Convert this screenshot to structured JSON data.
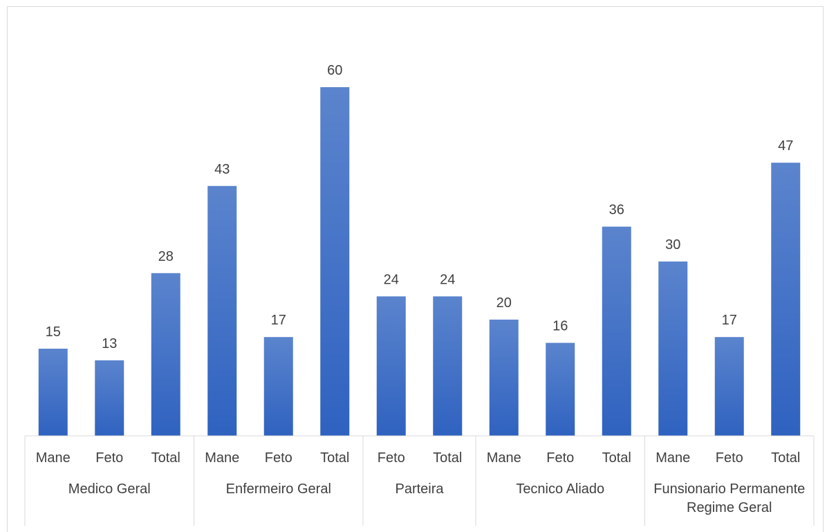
{
  "chart_data": {
    "type": "bar",
    "title": "",
    "xlabel": "",
    "ylabel": "",
    "ylim": [
      0,
      60
    ],
    "grid": false,
    "legend": "none",
    "bar_color_top": "#5b84cd",
    "bar_color_bottom": "#2f62c0",
    "groups": [
      {
        "label": [
          "Medico Geral"
        ],
        "categories": [
          "Mane",
          "Feto",
          "Total"
        ],
        "values": [
          15,
          13,
          28
        ]
      },
      {
        "label": [
          "Enfermeiro Geral"
        ],
        "categories": [
          "Mane",
          "Feto",
          "Total"
        ],
        "values": [
          43,
          17,
          60
        ]
      },
      {
        "label": [
          "Parteira"
        ],
        "categories": [
          "Feto",
          "Total"
        ],
        "values": [
          24,
          24
        ]
      },
      {
        "label": [
          "Tecnico Aliado"
        ],
        "categories": [
          "Mane",
          "Feto",
          "Total"
        ],
        "values": [
          20,
          16,
          36
        ]
      },
      {
        "label": [
          "Funsionario Permanente",
          "Regime Geral"
        ],
        "categories": [
          "Mane",
          "Feto",
          "Total"
        ],
        "values": [
          30,
          17,
          47
        ]
      }
    ]
  }
}
